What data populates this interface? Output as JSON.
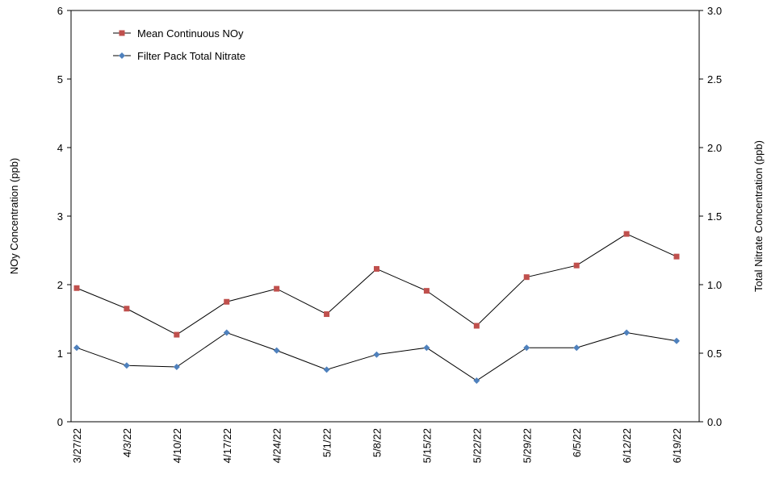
{
  "chart_data": {
    "type": "line",
    "categories": [
      "3/27/22",
      "4/3/22",
      "4/10/22",
      "4/17/22",
      "4/24/22",
      "5/1/22",
      "5/8/22",
      "5/15/22",
      "5/22/22",
      "5/29/22",
      "6/5/22",
      "6/12/22",
      "6/19/22"
    ],
    "ylabel": "NOy Concentration (ppb)",
    "y2label": "Total Nitrate Concentration (ppb)",
    "ylim": [
      0,
      6
    ],
    "yticks": [
      0,
      1,
      2,
      3,
      4,
      5,
      6
    ],
    "y2lim": [
      0,
      3
    ],
    "y2ticks": [
      {
        "value": 0,
        "label": "0.0"
      },
      0.5,
      {
        "value": 1,
        "label": "1.0"
      },
      1.5,
      {
        "value": 2,
        "label": "2.0"
      },
      2.5,
      {
        "value": 3,
        "label": "3.0"
      }
    ],
    "legend": "upper left",
    "series": [
      {
        "name": "Mean Continuous NOy",
        "color": "#c0504d",
        "marker": "square",
        "values": [
          1.95,
          1.65,
          1.27,
          1.75,
          1.94,
          1.57,
          2.23,
          1.91,
          1.4,
          2.11,
          2.28,
          2.74,
          2.41
        ]
      },
      {
        "name": "Filter Pack Total Nitrate",
        "color": "#4f81bd",
        "marker": "diamond",
        "axis": "y2",
        "values": [
          0.54,
          0.41,
          0.4,
          0.65,
          0.52,
          0.38,
          0.49,
          0.54,
          0.3,
          0.54,
          0.54,
          0.65,
          0.59
        ]
      }
    ]
  }
}
